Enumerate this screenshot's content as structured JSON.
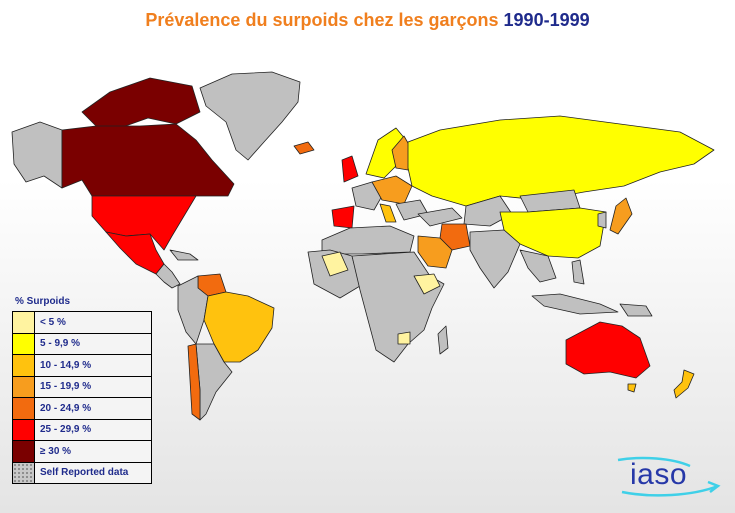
{
  "title": {
    "main": "Prévalence du surpoids chez les garçons",
    "years": "1990-1999"
  },
  "legend": {
    "title": "% Surpoids",
    "items": [
      {
        "label": "< 5 %",
        "color": "#fff3a0"
      },
      {
        "label": "5 - 9,9 %",
        "color": "#ffff00"
      },
      {
        "label": "10 - 14,9 %",
        "color": "#ffc20e"
      },
      {
        "label": "15 - 19,9 %",
        "color": "#f79d1e"
      },
      {
        "label": "20 - 24,9 %",
        "color": "#f26b0f"
      },
      {
        "label": "25 - 29,9 %",
        "color": "#ff0000"
      },
      {
        "label": "≥ 30 %",
        "color": "#7a0000"
      },
      {
        "label": "Self Reported data",
        "color": "#c8c8c8"
      }
    ]
  },
  "colors": {
    "no_data": "#c0c0c0",
    "under_5": "#fff3a0",
    "5_9": "#ffff00",
    "10_14": "#ffc20e",
    "15_19": "#f79d1e",
    "20_24": "#f26b0f",
    "25_29": "#ff0000",
    "30_plus": "#7a0000"
  },
  "logo": {
    "text": "iaso"
  }
}
